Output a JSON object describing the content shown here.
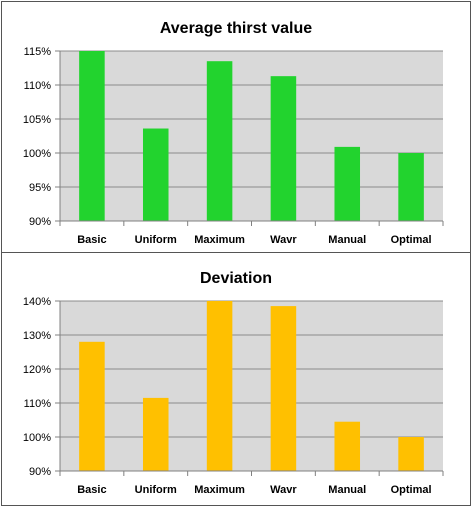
{
  "chart_data": [
    {
      "type": "bar",
      "title": "Average thirst value",
      "categories": [
        "Basic",
        "Uniform",
        "Maximum",
        "Wavr",
        "Manual",
        "Optimal"
      ],
      "values": [
        115.0,
        103.6,
        113.5,
        111.3,
        100.9,
        100.0
      ],
      "ylim": [
        90,
        115
      ],
      "yticks": [
        90,
        95,
        100,
        105,
        110,
        115
      ],
      "yticklabels": [
        "90%",
        "95%",
        "100%",
        "105%",
        "110%",
        "115%"
      ],
      "bar_color": "#22d32e",
      "plot_bg": "#d9d9d9",
      "grid": true
    },
    {
      "type": "bar",
      "title": "Deviation",
      "categories": [
        "Basic",
        "Uniform",
        "Maximum",
        "Wavr",
        "Manual",
        "Optimal"
      ],
      "values": [
        128.0,
        111.5,
        140.0,
        138.5,
        104.5,
        100.0
      ],
      "ylim": [
        90,
        140
      ],
      "yticks": [
        90,
        100,
        110,
        120,
        130,
        140
      ],
      "yticklabels": [
        "90%",
        "100%",
        "110%",
        "120%",
        "130%",
        "140%"
      ],
      "bar_color": "#ffc000",
      "plot_bg": "#d9d9d9",
      "grid": true
    }
  ]
}
